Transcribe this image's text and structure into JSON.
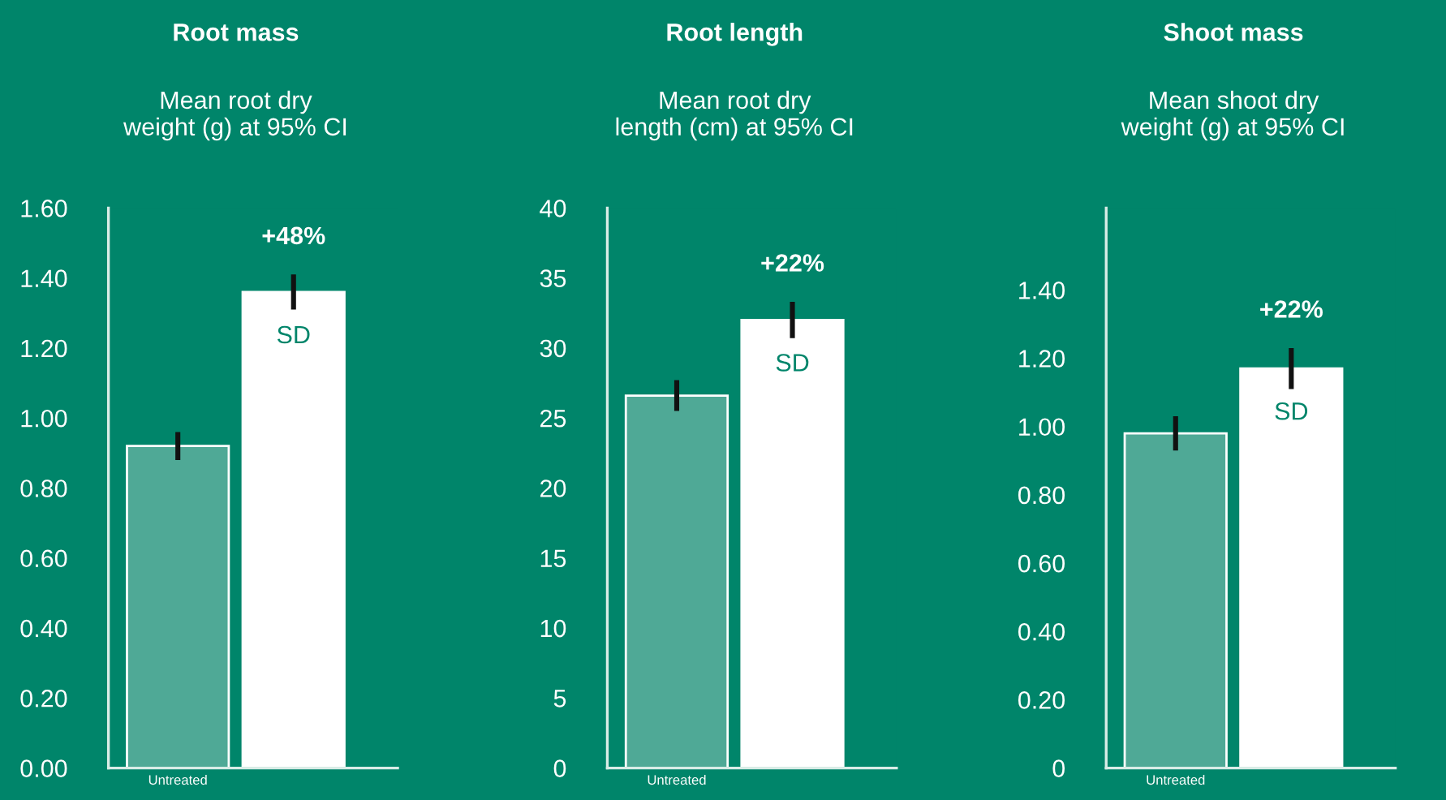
{
  "chart_data": [
    {
      "type": "bar",
      "title": "Root mass",
      "subtitle": "Mean root dry\nweight (g) at 95% CI",
      "categories": [
        "Untreated",
        null
      ],
      "values": [
        0.92,
        1.36
      ],
      "colors": [
        "#4fa996",
        "#ffffff"
      ],
      "errors": [
        0.04,
        0.05
      ],
      "ylim": [
        0,
        1.6
      ],
      "yticks": [
        {
          "value": 0,
          "label": "0.00"
        },
        {
          "value": 0.2,
          "label": "0.20"
        },
        {
          "value": 0.4,
          "label": "0.40"
        },
        {
          "value": 0.6,
          "label": "0.60"
        },
        {
          "value": 0.8,
          "label": "0.80"
        },
        {
          "value": 1.0,
          "label": "1.00"
        },
        {
          "value": 1.2,
          "label": "1.20"
        },
        {
          "value": 1.4,
          "label": "1.40"
        },
        {
          "value": 1.6,
          "label": "1.60"
        }
      ],
      "annotations": [
        "+48%",
        "SD"
      ],
      "grid": false,
      "legend": false
    },
    {
      "type": "bar",
      "title": "Root length",
      "subtitle": "Mean root dry\nlength (cm) at 95% CI",
      "categories": [
        "Untreated",
        null
      ],
      "values": [
        26.6,
        32.0
      ],
      "colors": [
        "#4fa996",
        "#ffffff"
      ],
      "errors": [
        1.1,
        1.3
      ],
      "ylim": [
        0,
        40
      ],
      "yticks": [
        0,
        5,
        10,
        15,
        20,
        25,
        30,
        35,
        40
      ],
      "annotations": [
        "+22%",
        "SD"
      ],
      "grid": false,
      "legend": false
    },
    {
      "type": "bar",
      "title": "Shoot mass",
      "subtitle": "Mean shoot dry\nweight (g) at 95% CI",
      "categories": [
        "Untreated",
        null
      ],
      "values": [
        0.98,
        1.17
      ],
      "colors": [
        "#4fa996",
        "#ffffff"
      ],
      "errors": [
        0.05,
        0.06
      ],
      "ylim": [
        0,
        1.64
      ],
      "yticks": [
        0,
        {
          "value": 0.2,
          "label": "0.20"
        },
        {
          "value": 0.4,
          "label": "0.40"
        },
        {
          "value": 0.6,
          "label": "0.60"
        },
        {
          "value": 0.8,
          "label": "0.80"
        },
        {
          "value": 1.0,
          "label": "1.00"
        },
        {
          "value": 1.2,
          "label": "1.20"
        },
        {
          "value": 1.4,
          "label": "1.40"
        }
      ],
      "annotations": [
        "+22%",
        "SD"
      ],
      "grid": false,
      "legend": false
    }
  ]
}
